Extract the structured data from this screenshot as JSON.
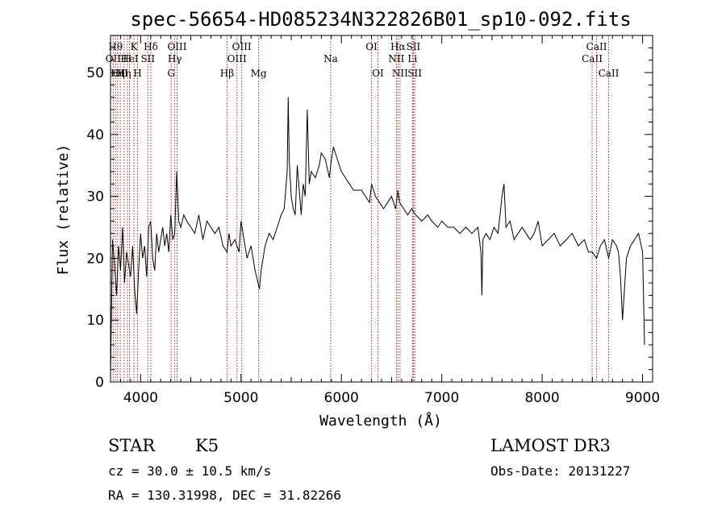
{
  "chart_data": {
    "type": "line",
    "title": "spec-56654-HD085234N322826B01_sp10-092.fits",
    "xlabel": "Wavelength (Å)",
    "ylabel": "Flux (relative)",
    "xlim": [
      3700,
      9100
    ],
    "ylim": [
      0,
      56
    ],
    "xticks": [
      4000,
      5000,
      6000,
      7000,
      8000,
      9000
    ],
    "yticks": [
      0,
      10,
      20,
      30,
      40,
      50
    ],
    "grid": false,
    "series": [
      {
        "color": "#000000",
        "x": [
          3700,
          3720,
          3740,
          3760,
          3780,
          3800,
          3820,
          3840,
          3860,
          3880,
          3900,
          3920,
          3940,
          3960,
          3980,
          4000,
          4020,
          4040,
          4060,
          4080,
          4100,
          4120,
          4140,
          4160,
          4180,
          4200,
          4220,
          4240,
          4260,
          4280,
          4300,
          4320,
          4340,
          4360,
          4380,
          4400,
          4430,
          4460,
          4500,
          4540,
          4580,
          4620,
          4660,
          4700,
          4740,
          4780,
          4820,
          4861,
          4880,
          4900,
          4940,
          4980,
          5000,
          5020,
          5060,
          5100,
          5140,
          5170,
          5183,
          5200,
          5240,
          5280,
          5320,
          5360,
          5400,
          5430,
          5460,
          5470,
          5480,
          5500,
          5520,
          5540,
          5560,
          5580,
          5600,
          5620,
          5640,
          5660,
          5680,
          5700,
          5740,
          5780,
          5800,
          5840,
          5880,
          5893,
          5920,
          5960,
          6000,
          6040,
          6080,
          6120,
          6160,
          6200,
          6240,
          6280,
          6300,
          6340,
          6380,
          6420,
          6460,
          6500,
          6540,
          6563,
          6580,
          6620,
          6660,
          6700,
          6740,
          6800,
          6860,
          6900,
          6960,
          7000,
          7060,
          7120,
          7180,
          7240,
          7300,
          7360,
          7390,
          7400,
          7410,
          7440,
          7480,
          7520,
          7560,
          7600,
          7620,
          7640,
          7680,
          7720,
          7760,
          7800,
          7840,
          7880,
          7920,
          7960,
          8000,
          8060,
          8120,
          8180,
          8240,
          8300,
          8360,
          8420,
          8460,
          8498,
          8542,
          8580,
          8620,
          8662,
          8700,
          8740,
          8760,
          8780,
          8800,
          8840,
          8880,
          8920,
          8960,
          9000,
          9020
        ],
        "values": [
          1,
          23,
          19,
          14,
          22,
          18,
          25,
          16,
          21,
          19,
          17,
          22,
          15,
          11,
          18,
          24,
          20,
          22,
          17,
          25,
          26,
          20,
          18,
          24,
          21,
          23,
          25,
          22,
          24,
          21,
          27,
          23,
          24,
          34,
          26,
          25,
          27,
          26,
          25,
          24,
          27,
          23,
          26,
          25,
          24,
          25,
          22,
          21,
          24,
          22,
          23,
          21,
          26,
          24,
          20,
          22,
          18,
          16,
          15,
          18,
          22,
          24,
          23,
          25,
          27,
          28,
          34,
          46,
          36,
          30,
          28,
          27,
          35,
          31,
          27,
          32,
          30,
          44,
          32,
          34,
          33,
          35,
          37,
          36,
          33,
          35,
          38,
          36,
          34,
          33,
          32,
          31,
          31,
          31,
          30,
          29,
          32,
          30,
          29,
          28,
          29,
          30,
          28,
          31,
          29,
          28,
          27,
          28,
          27,
          26,
          27,
          26,
          25,
          26,
          25,
          25,
          24,
          25,
          24,
          25,
          21,
          14,
          23,
          24,
          23,
          25,
          24,
          30,
          32,
          25,
          26,
          23,
          24,
          25,
          24,
          23,
          24,
          26,
          22,
          23,
          24,
          22,
          23,
          24,
          22,
          23,
          21,
          21,
          20,
          22,
          23,
          20,
          23,
          22,
          21,
          17,
          10,
          20,
          22,
          23,
          24,
          21,
          6
        ]
      }
    ],
    "line_markers": [
      {
        "wavelength": 3727,
        "label": "OII",
        "row": 2
      },
      {
        "wavelength": 3750,
        "label": "Hθ",
        "row": 1
      },
      {
        "wavelength": 3771,
        "label": "Hη",
        "row": 3
      },
      {
        "wavelength": 3798,
        "label": "OII",
        "row": 3
      },
      {
        "wavelength": 3835,
        "label": "Hη",
        "row": 3
      },
      {
        "wavelength": 3868,
        "label": "H",
        "row": 2
      },
      {
        "wavelength": 3889,
        "label": "HeI",
        "row": 2
      },
      {
        "wavelength": 3934,
        "label": "K",
        "row": 1
      },
      {
        "wavelength": 3969,
        "label": "H",
        "row": 3
      },
      {
        "wavelength": 4072,
        "label": "SII",
        "row": 2
      },
      {
        "wavelength": 4102,
        "label": "Hδ",
        "row": 1
      },
      {
        "wavelength": 4304,
        "label": "G",
        "row": 3
      },
      {
        "wavelength": 4340,
        "label": "Hγ",
        "row": 2
      },
      {
        "wavelength": 4363,
        "label": "OIII",
        "row": 1
      },
      {
        "wavelength": 4861,
        "label": "Hβ",
        "row": 3
      },
      {
        "wavelength": 4959,
        "label": "OIII",
        "row": 2
      },
      {
        "wavelength": 5007,
        "label": "OIII",
        "row": 1
      },
      {
        "wavelength": 5175,
        "label": "Mg",
        "row": 3
      },
      {
        "wavelength": 5893,
        "label": "Na",
        "row": 2
      },
      {
        "wavelength": 6300,
        "label": "OI",
        "row": 1
      },
      {
        "wavelength": 6364,
        "label": "OI",
        "row": 3
      },
      {
        "wavelength": 6548,
        "label": "NII",
        "row": 2
      },
      {
        "wavelength": 6563,
        "label": "Hα",
        "row": 1
      },
      {
        "wavelength": 6584,
        "label": "NII",
        "row": 3
      },
      {
        "wavelength": 6708,
        "label": "Li",
        "row": 2
      },
      {
        "wavelength": 6717,
        "label": "SII",
        "row": 1
      },
      {
        "wavelength": 6731,
        "label": "SII",
        "row": 3
      },
      {
        "wavelength": 8498,
        "label": "CaII",
        "row": 2
      },
      {
        "wavelength": 8542,
        "label": "CaII",
        "row": 1
      },
      {
        "wavelength": 8662,
        "label": "CaII",
        "row": 3
      }
    ]
  },
  "info": {
    "object_class": "STAR",
    "subclass": "K5",
    "survey": "LAMOST DR3",
    "cz": "cz = 30.0 ± 10.5 km/s",
    "obs_date": "Obs-Date: 20131227",
    "coords": "RA = 130.31998, DEC =  31.82266"
  },
  "colors": {
    "spectrum": "#000000",
    "line_markers": "#b22222",
    "axes": "#000000",
    "background": "#ffffff"
  }
}
